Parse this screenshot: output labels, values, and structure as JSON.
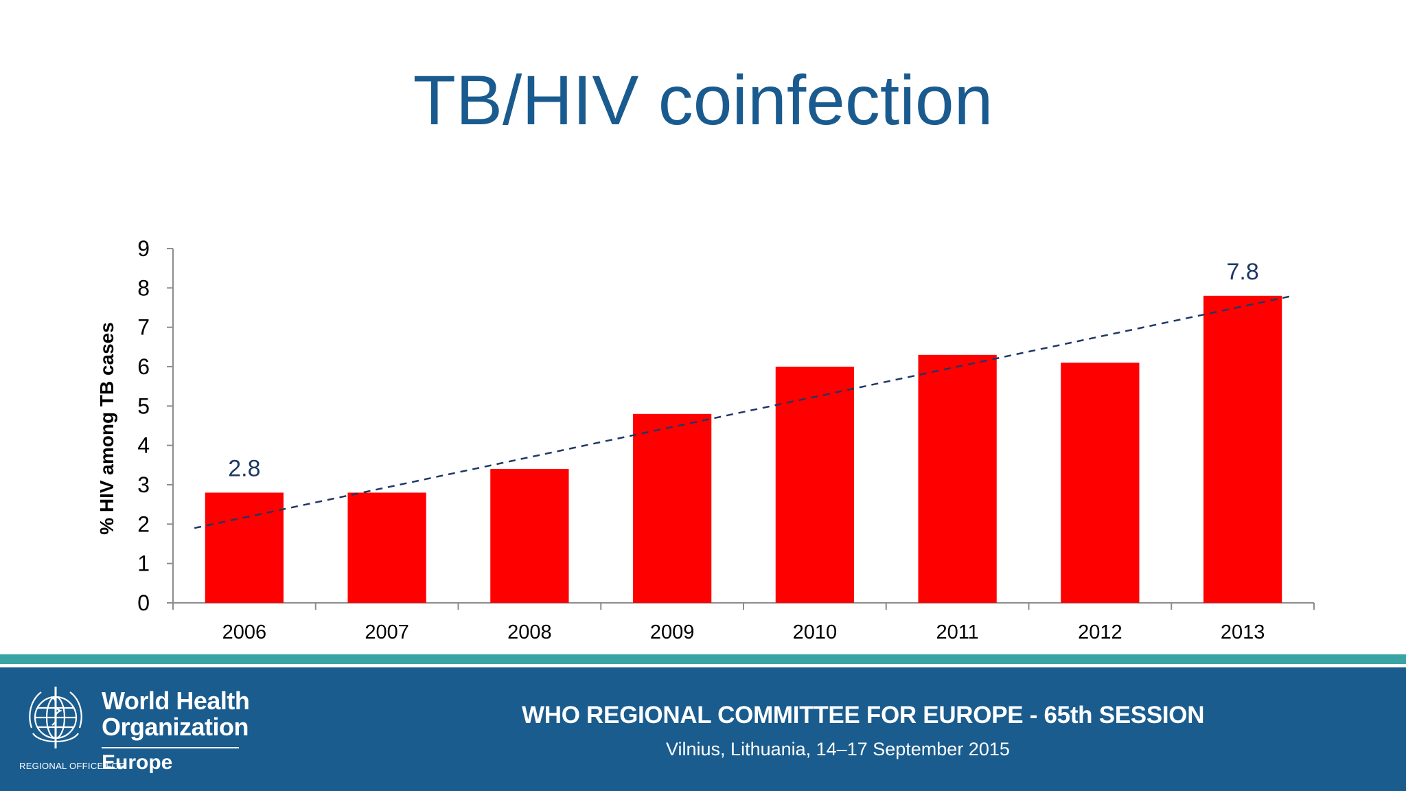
{
  "slide": {
    "title": "TB/HIV coinfection"
  },
  "chart_data": {
    "type": "bar",
    "categories": [
      "2006",
      "2007",
      "2008",
      "2009",
      "2010",
      "2011",
      "2012",
      "2013"
    ],
    "values": [
      2.8,
      2.8,
      3.4,
      4.8,
      6.0,
      6.3,
      6.1,
      7.8
    ],
    "ylabel": "% HIV among TB cases",
    "ylim": [
      0,
      9
    ],
    "yticks": [
      0,
      1,
      2,
      3,
      4,
      5,
      6,
      7,
      8,
      9
    ],
    "bar_color": "#ff0000",
    "data_labels": [
      {
        "category": "2006",
        "text": "2.8"
      },
      {
        "category": "2013",
        "text": "7.8"
      }
    ],
    "trendline": {
      "style": "dashed",
      "color": "#1f3864",
      "start_value": 1.9,
      "end_value": 7.8
    },
    "grid": false,
    "legend": "none"
  },
  "footer": {
    "org_line1": "World Health",
    "org_line2": "Organization",
    "regional_office": "REGIONAL OFFICE FOR",
    "region": "Europe",
    "session_title": "WHO REGIONAL COMMITTEE FOR EUROPE - 65th SESSION",
    "session_subtitle": "Vilnius, Lithuania, 14–17 September 2015",
    "emblem_icon": "who-emblem-icon",
    "colors": {
      "band": "#1a5c8e",
      "stripe": "#3aa3a3"
    }
  }
}
